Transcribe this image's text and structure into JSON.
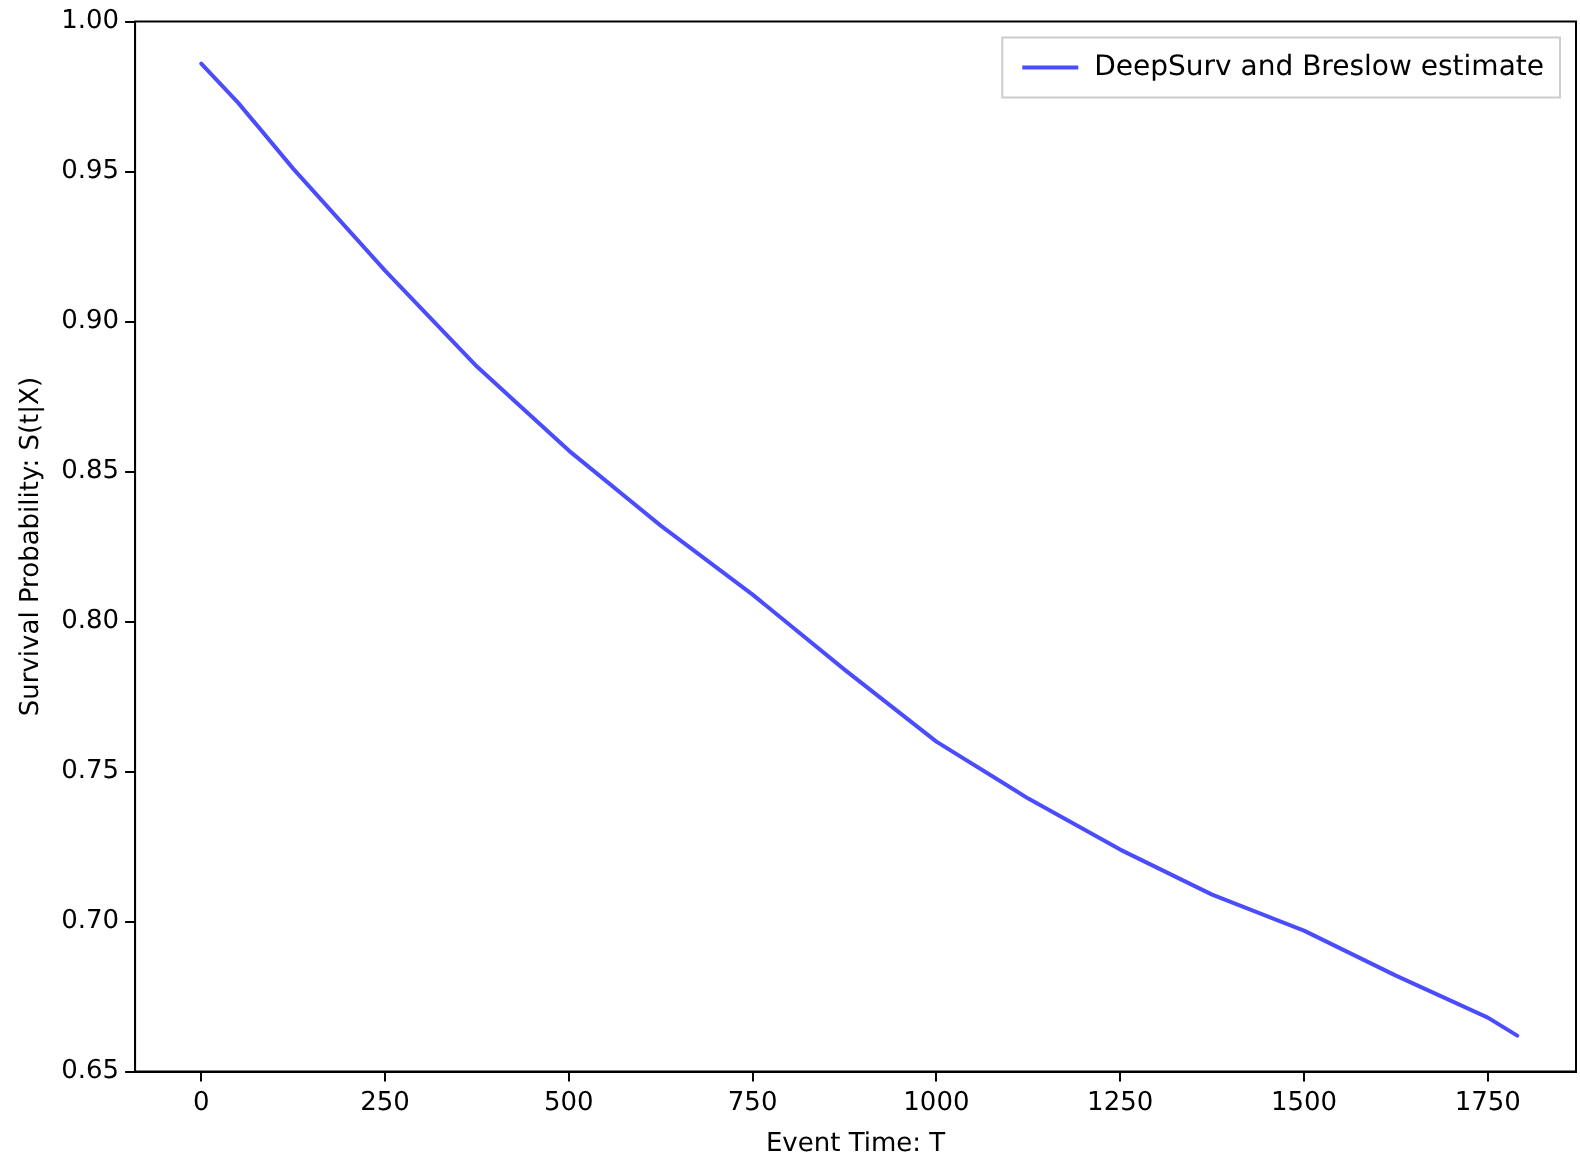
{
  "chart_data": {
    "type": "line",
    "xlabel": "Event Time: T",
    "ylabel": "Survival Probability: S(t|X)",
    "x": [
      0,
      50,
      125,
      250,
      375,
      500,
      625,
      750,
      875,
      1000,
      1125,
      1250,
      1375,
      1500,
      1625,
      1750,
      1790
    ],
    "series": [
      {
        "name": "DeepSurv and Breslow estimate",
        "color": "#4c4cff",
        "values": [
          0.986,
          0.973,
          0.951,
          0.917,
          0.885,
          0.857,
          0.832,
          0.809,
          0.784,
          0.76,
          0.741,
          0.724,
          0.709,
          0.697,
          0.682,
          0.668,
          0.662
        ]
      }
    ],
    "xlim": [
      -90,
      1870
    ],
    "xticks": [
      0,
      250,
      500,
      750,
      1000,
      1250,
      1500,
      1750
    ],
    "ylim": [
      0.65,
      1.0
    ],
    "yticks": [
      0.65,
      {
        "value": 0.7,
        "label": "0.70"
      },
      0.75,
      {
        "value": 0.8,
        "label": "0.80"
      },
      0.85,
      {
        "value": 0.9,
        "label": "0.90"
      },
      0.95,
      {
        "value": 1.0,
        "label": "1.00"
      }
    ],
    "grid": false,
    "legend": "top right",
    "marker": "none",
    "line_style": "solid"
  }
}
